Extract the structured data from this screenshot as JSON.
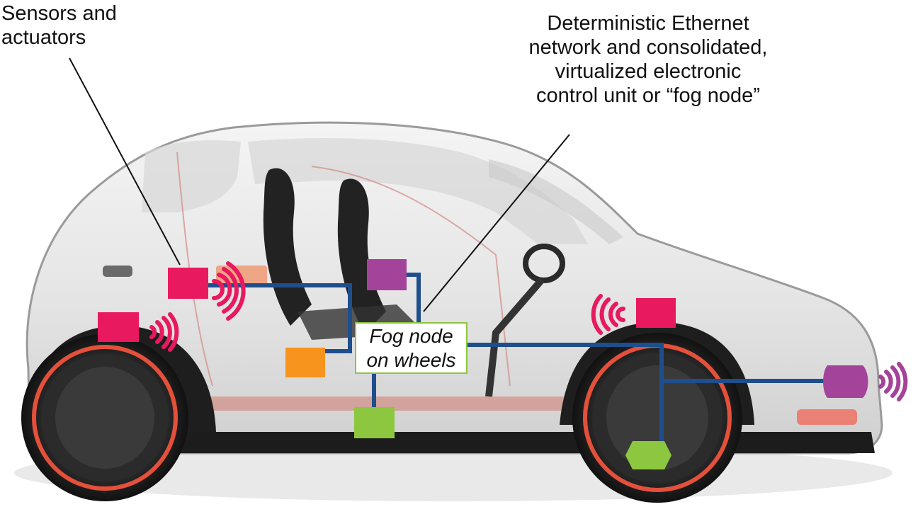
{
  "labels": {
    "sensors": [
      "Sensors and",
      "actuators"
    ],
    "fog": [
      "Deterministic Ethernet",
      "network and consolidated,",
      "virtualized electronic",
      "control unit or “fog node”"
    ],
    "fog_box": [
      "Fog node",
      "on wheels"
    ]
  },
  "colors": {
    "sensor_pink": "#e8195f",
    "sensor_purple": "#a3449a",
    "sensor_orange": "#f7941d",
    "sensor_green": "#8dc63f",
    "network_line": "#1f4e8c",
    "wheel_rim": "#e4503a"
  },
  "components": [
    {
      "id": "pink-sensor-rear-upper",
      "color": "sensor_pink",
      "waves": "right"
    },
    {
      "id": "pink-sensor-rear-lower",
      "color": "sensor_pink",
      "waves": "right"
    },
    {
      "id": "purple-sensor-seat",
      "color": "sensor_purple"
    },
    {
      "id": "orange-sensor",
      "color": "sensor_orange"
    },
    {
      "id": "green-sensor-floor",
      "color": "sensor_green"
    },
    {
      "id": "pink-sensor-front",
      "color": "sensor_pink",
      "waves": "left"
    },
    {
      "id": "purple-sensor-front-bumper",
      "color": "sensor_purple",
      "waves": "right"
    },
    {
      "id": "green-sensor-front-wheel",
      "color": "sensor_green"
    }
  ]
}
